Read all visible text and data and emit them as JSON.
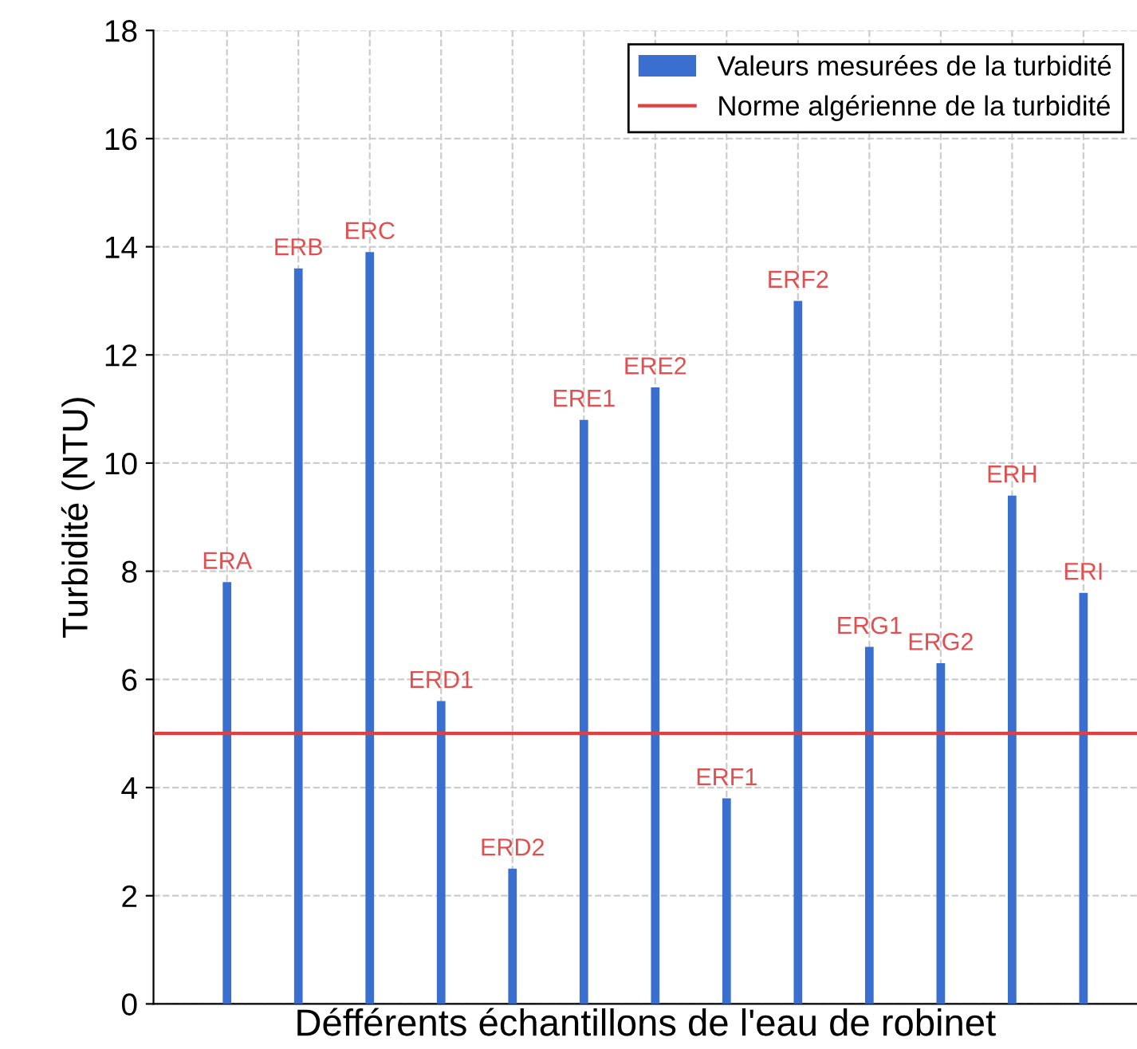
{
  "chart_data": {
    "type": "bar",
    "xlabel": "Défférents échantillons de l'eau de robinet",
    "ylabel": "Turbidité (NTU)",
    "categories": [
      "ERA",
      "ERB",
      "ERC",
      "ERD1",
      "ERD2",
      "ERE1",
      "ERE2",
      "ERF1",
      "ERF2",
      "ERG1",
      "ERG2",
      "ERH",
      "ERI"
    ],
    "series": [
      {
        "name": "Valeurs mesurées de la turbidité",
        "color": "#3a6fd0",
        "values": [
          7.8,
          13.6,
          13.9,
          5.6,
          2.5,
          10.8,
          11.4,
          3.8,
          13.0,
          6.6,
          6.3,
          9.4,
          7.6
        ]
      }
    ],
    "ref_lines": [
      {
        "axis": "y",
        "value": 5,
        "label": "Norme algérienne de la turbidité",
        "color": "#e04040",
        "line_style": "solid"
      }
    ],
    "ylim": [
      0,
      18
    ],
    "yticks": [
      0,
      2,
      4,
      6,
      8,
      10,
      12,
      14,
      16,
      18
    ],
    "grid": true,
    "legend": "top right",
    "tick_labels": "y"
  }
}
